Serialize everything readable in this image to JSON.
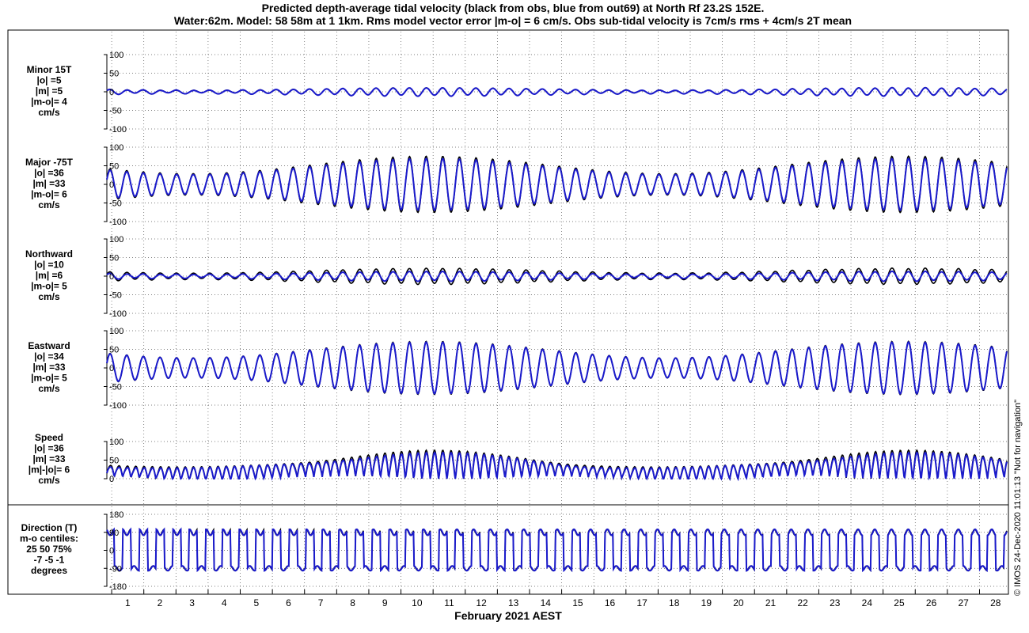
{
  "title_line1": "Predicted depth-average tidal velocity (black from obs, blue from out69) at North Rf 23.2S 152E.",
  "title_line2": "Water:62m. Model: 58 58m at 1 1km. Rms model vector error |m-o| = 6 cm/s. Obs sub-tidal velocity is 7cm/s rms + 4cm/s 2T mean",
  "side_note": "© IMOS 24-Dec-2020 11:01:13  \"Not for navigation\"",
  "colors": {
    "obs": "#000000",
    "model": "#1a1acc",
    "grid": "#555555"
  },
  "chart_data": {
    "type": "line",
    "xlabel": "February 2021 AEST",
    "x_range_days": [
      0.35,
      28.35
    ],
    "x_tick_labels": [
      "1",
      "2",
      "3",
      "4",
      "5",
      "6",
      "7",
      "8",
      "9",
      "10",
      "11",
      "12",
      "13",
      "14",
      "15",
      "16",
      "17",
      "18",
      "19",
      "20",
      "21",
      "22",
      "23",
      "24",
      "25",
      "26",
      "27",
      "28"
    ],
    "grid": "dotted",
    "panels": [
      {
        "id": "minor",
        "label_lines": [
          "Minor 15T",
          "|o| =5",
          "|m| =5",
          "|m-o|= 4",
          "cm/s"
        ],
        "ylim": [
          -100,
          100
        ],
        "yticks": [
          "100",
          "50",
          "0",
          "-50",
          "-100"
        ],
        "series": [
          {
            "name": "obs",
            "rms_amplitude": 5
          },
          {
            "name": "model",
            "rms_amplitude": 5
          }
        ]
      },
      {
        "id": "major",
        "label_lines": [
          "Major -75T",
          "|o| =36",
          "|m| =33",
          "|m-o|= 6",
          "cm/s"
        ],
        "ylim": [
          -100,
          100
        ],
        "yticks": [
          "100",
          "50",
          "0",
          "-50",
          "-100"
        ],
        "series": [
          {
            "name": "obs",
            "rms_amplitude": 36
          },
          {
            "name": "model",
            "rms_amplitude": 33
          }
        ]
      },
      {
        "id": "north",
        "label_lines": [
          "Northward",
          "|o| =10",
          "|m| =6",
          "|m-o|= 5",
          "cm/s"
        ],
        "ylim": [
          -100,
          100
        ],
        "yticks": [
          "100",
          "50",
          "0",
          "-50",
          "-100"
        ],
        "series": [
          {
            "name": "obs",
            "rms_amplitude": 10
          },
          {
            "name": "model",
            "rms_amplitude": 6
          }
        ]
      },
      {
        "id": "east",
        "label_lines": [
          "Eastward",
          "|o| =34",
          "|m| =33",
          "|m-o|= 5",
          "cm/s"
        ],
        "ylim": [
          -100,
          100
        ],
        "yticks": [
          "100",
          "50",
          "0",
          "-50",
          "-100"
        ],
        "series": [
          {
            "name": "obs",
            "rms_amplitude": 34
          },
          {
            "name": "model",
            "rms_amplitude": 33
          }
        ]
      },
      {
        "id": "speed",
        "label_lines": [
          "Speed",
          "|o| =36",
          "|m| =33",
          "|m|-|o|= 6",
          "cm/s"
        ],
        "ylim": [
          0,
          100
        ],
        "yticks": [
          "100",
          "50",
          "0"
        ],
        "series": [
          {
            "name": "obs",
            "rms_amplitude": 36
          },
          {
            "name": "model",
            "rms_amplitude": 33
          }
        ]
      },
      {
        "id": "direction",
        "label_lines": [
          "Direction (T)",
          "m-o centiles:",
          "25  50  75%",
          "-7 -5 -1",
          "degrees"
        ],
        "ylim": [
          -180,
          180
        ],
        "yticks": [
          "180",
          "90",
          "0",
          "-90",
          "-180"
        ],
        "series": [
          {
            "name": "obs"
          },
          {
            "name": "model"
          }
        ]
      }
    ]
  }
}
